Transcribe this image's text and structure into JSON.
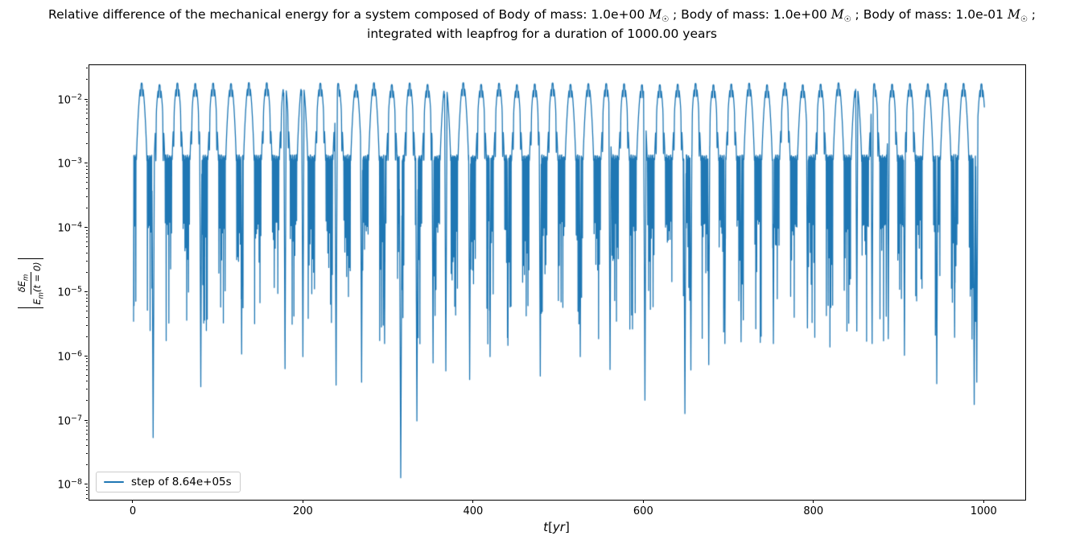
{
  "chart_data": {
    "type": "line",
    "title_line1": "Relative difference of the mechanical energy for a system composed of Body of mass: 1.0e+00 M☉ ; Body of mass: 1.0e+00 M☉ ; Body of mass: 1.0e-01 M☉ ;",
    "title_line2": "integrated with leapfrog for a duration of 1000.00 years",
    "xlabel": "t[yr]",
    "ylabel": {
      "numerator_base": "δE",
      "numerator_sub": "m",
      "denominator_base": "E",
      "denominator_sub": "m",
      "denominator_suffix": "(t = 0)"
    },
    "x_ticks": [
      0,
      200,
      400,
      600,
      800,
      1000
    ],
    "y_tick_exponents": [
      -2,
      -3,
      -4,
      -5,
      -6,
      -7,
      -8
    ],
    "xlim": [
      -52,
      1048
    ],
    "ylim_log10": [
      -8.228,
      -1.461
    ],
    "grid": false,
    "legend": {
      "label": "step of 8.64e+05s",
      "position": "lower left"
    },
    "line_color": "#1f77b4",
    "series": {
      "name": "step of 8.64e+05s",
      "duration_yr": 1000,
      "period_yr": 21.0,
      "first_peak_yr": 9.5,
      "peak_value": 0.0166,
      "valley_value": 0.00117,
      "valley_subperiod_yr": 1.05,
      "valley_spike_tip_range": [
        0.00012,
        1.5e-06
      ],
      "start_value": 3.5e-06,
      "deep_minima": [
        [
          23,
          5.5e-08
        ],
        [
          79,
          3.4e-07
        ],
        [
          127,
          1.1e-06
        ],
        [
          178,
          6.5e-07
        ],
        [
          199,
          1e-06
        ],
        [
          238,
          3.6e-07
        ],
        [
          268,
          4e-07
        ],
        [
          295,
          1.6e-06
        ],
        [
          314,
          1.3e-08
        ],
        [
          333,
          1e-07
        ],
        [
          352,
          8e-07
        ],
        [
          367,
          6e-07
        ],
        [
          395,
          4.4e-07
        ],
        [
          419,
          1e-06
        ],
        [
          440,
          1.5e-06
        ],
        [
          478,
          5e-07
        ],
        [
          525,
          1e-06
        ],
        [
          560,
          6.3e-07
        ],
        [
          601,
          2.1e-07
        ],
        [
          648,
          1.3e-07
        ],
        [
          655,
          6.2e-07
        ],
        [
          676,
          7.5e-07
        ],
        [
          695,
          1.6e-06
        ],
        [
          714,
          1.7e-06
        ],
        [
          752,
          1.6e-06
        ],
        [
          792,
          2.8e-06
        ],
        [
          850,
          2.5e-06
        ],
        [
          868,
          1.6e-06
        ],
        [
          887,
          1.9e-06
        ],
        [
          906,
          1.05e-06
        ],
        [
          944,
          3.8e-07
        ],
        [
          965,
          2e-06
        ],
        [
          988,
          1.8e-07
        ],
        [
          991,
          4e-07
        ]
      ]
    }
  }
}
